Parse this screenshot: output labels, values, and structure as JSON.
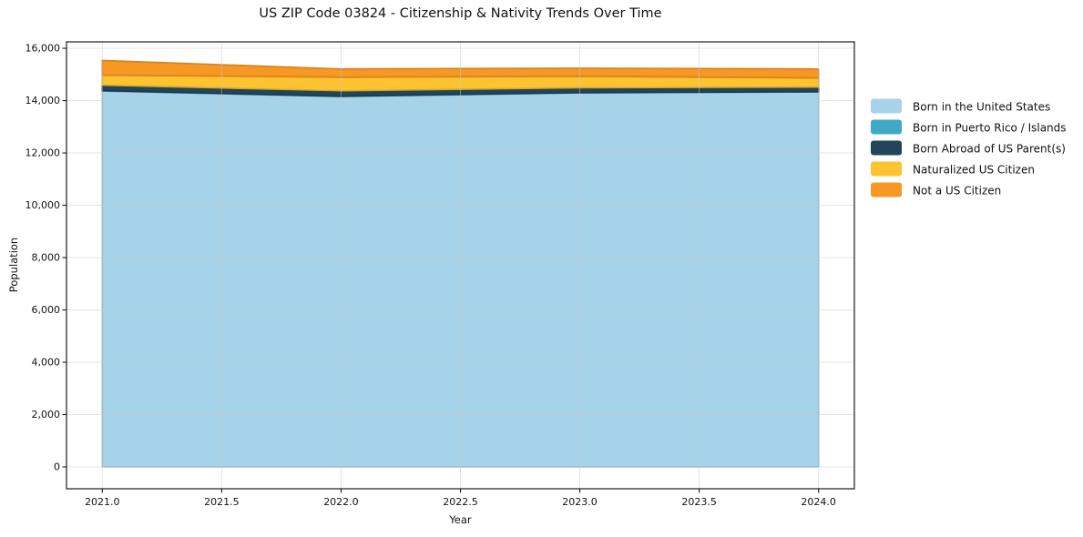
{
  "chart_data": {
    "type": "area",
    "stacked": true,
    "title": "US ZIP Code 03824 - Citizenship & Nativity Trends Over Time",
    "xlabel": "Year",
    "ylabel": "Population",
    "x": [
      2021,
      2022,
      2023,
      2024
    ],
    "series": [
      {
        "name": "Born in the United States",
        "color": "#a6d3ea",
        "values": [
          14365,
          14155,
          14295,
          14330
        ]
      },
      {
        "name": "Born in Puerto Rico / Islands",
        "color": "#41a9c5",
        "values": [
          15,
          10,
          10,
          10
        ]
      },
      {
        "name": "Born Abroad of US Parent(s)",
        "color": "#21455a",
        "values": [
          210,
          210,
          185,
          175
        ]
      },
      {
        "name": "Naturalized US Citizen",
        "color": "#fdc330",
        "values": [
          385,
          520,
          440,
          350
        ]
      },
      {
        "name": "Not a US Citizen",
        "color": "#f79724",
        "values": [
          560,
          315,
          310,
          345
        ]
      }
    ],
    "totals": [
      15535,
      15210,
      15240,
      15210
    ],
    "xlim": [
      2020.85,
      2024.15
    ],
    "ylim": [
      -835,
      16245
    ],
    "x_ticks": [
      2021.0,
      2021.5,
      2022.0,
      2022.5,
      2023.0,
      2023.5,
      2024.0
    ],
    "y_ticks": [
      0,
      2000,
      4000,
      6000,
      8000,
      10000,
      12000,
      14000,
      16000
    ],
    "grid": true,
    "grid_color": "#c9c9c9",
    "spine_color": "#1a1a1a",
    "legend_position": "right-outside"
  }
}
